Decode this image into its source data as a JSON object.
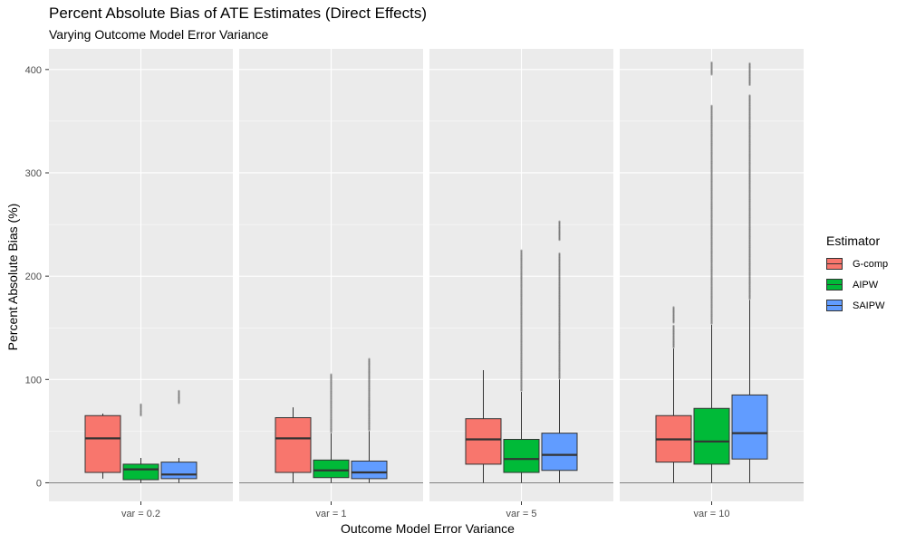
{
  "chart_data": {
    "type": "boxplot",
    "title": "Percent Absolute Bias of ATE Estimates (Direct Effects)",
    "subtitle": "Varying Outcome Model Error Variance",
    "xlabel": "Outcome Model Error Variance",
    "ylabel": "Percent Absolute Bias (%)",
    "ylim": [
      -18,
      420
    ],
    "yticks": [
      0,
      100,
      200,
      300,
      400
    ],
    "facets": [
      "var = 0.2",
      "var = 1",
      "var = 5",
      "var = 10"
    ],
    "legend": {
      "title": "Estimator",
      "entries": [
        {
          "name": "G-comp",
          "color": "#F8766D"
        },
        {
          "name": "AIPW",
          "color": "#00BA38"
        },
        {
          "name": "SAIPW",
          "color": "#619CFF"
        }
      ]
    },
    "series": [
      {
        "name": "G-comp",
        "color": "#F8766D",
        "boxes": [
          {
            "facet": "var = 0.2",
            "min": 4,
            "q1": 10,
            "median": 43,
            "q3": 65,
            "max": 67,
            "outliers": []
          },
          {
            "facet": "var = 1",
            "min": 0,
            "q1": 10,
            "median": 43,
            "q3": 63,
            "max": 73,
            "outliers": []
          },
          {
            "facet": "var = 5",
            "min": 0,
            "q1": 18,
            "median": 42,
            "q3": 62,
            "max": 109,
            "outliers": []
          },
          {
            "facet": "var = 10",
            "min": 0,
            "q1": 20,
            "median": 42,
            "q3": 65,
            "max": 130,
            "outliers": [
              [
                131,
                152
              ],
              [
                155,
                170
              ]
            ]
          }
        ]
      },
      {
        "name": "AIPW",
        "color": "#00BA38",
        "boxes": [
          {
            "facet": "var = 0.2",
            "min": 0,
            "q1": 3,
            "median": 13,
            "q3": 18,
            "max": 24,
            "outliers": [
              [
                65,
                76
              ]
            ]
          },
          {
            "facet": "var = 1",
            "min": 0,
            "q1": 5,
            "median": 12,
            "q3": 22,
            "max": 48,
            "outliers": [
              [
                49,
                105
              ]
            ]
          },
          {
            "facet": "var = 5",
            "min": 0,
            "q1": 10,
            "median": 23,
            "q3": 42,
            "max": 88,
            "outliers": [
              [
                89,
                225
              ]
            ]
          },
          {
            "facet": "var = 10",
            "min": 0,
            "q1": 18,
            "median": 40,
            "q3": 72,
            "max": 153,
            "outliers": [
              [
                154,
                365
              ],
              [
                395,
                407
              ]
            ]
          }
        ]
      },
      {
        "name": "SAIPW",
        "color": "#619CFF",
        "boxes": [
          {
            "facet": "var = 0.2",
            "min": 0,
            "q1": 4,
            "median": 8,
            "q3": 20,
            "max": 24,
            "outliers": [
              [
                77,
                89
              ]
            ]
          },
          {
            "facet": "var = 1",
            "min": 0,
            "q1": 4,
            "median": 10,
            "q3": 21,
            "max": 50,
            "outliers": [
              [
                51,
                120
              ]
            ]
          },
          {
            "facet": "var = 5",
            "min": 0,
            "q1": 12,
            "median": 27,
            "q3": 48,
            "max": 100,
            "outliers": [
              [
                101,
                222
              ],
              [
                235,
                253
              ]
            ]
          },
          {
            "facet": "var = 10",
            "min": 0,
            "q1": 23,
            "median": 48,
            "q3": 85,
            "max": 177,
            "outliers": [
              [
                178,
                375
              ],
              [
                385,
                406
              ]
            ]
          }
        ]
      }
    ]
  }
}
